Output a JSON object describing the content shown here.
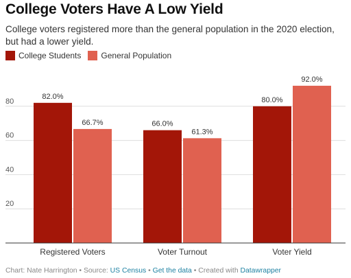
{
  "header": {
    "title": "College Voters Have A Low Yield",
    "subtitle": "College voters registered more than the general population in the 2020 election, but had a lower yield."
  },
  "colors": {
    "college": "#a31608",
    "general": "#e06150",
    "grid": "#dddddd",
    "axis": "#333333"
  },
  "chart_data": {
    "type": "bar",
    "categories": [
      "Registered Voters",
      "Voter Turnout",
      "Voter Yield"
    ],
    "series": [
      {
        "name": "College Students",
        "values": [
          82.0,
          66.0,
          80.0
        ],
        "labels": [
          "82.0%",
          "66.0%",
          "80.0%"
        ]
      },
      {
        "name": "General Population",
        "values": [
          66.7,
          61.3,
          92.0
        ],
        "labels": [
          "66.7%",
          "61.3%",
          "92.0%"
        ]
      }
    ],
    "title": "College Voters Have A Low Yield",
    "ylim": [
      0,
      100
    ],
    "yticks": [
      20,
      40,
      60,
      80
    ],
    "grid": true,
    "legend": "top-left"
  },
  "footer": {
    "chart_credit": "Chart: Nate Harrington",
    "source_label": "Source:",
    "source_link": "US Census",
    "get_data": "Get the data",
    "created_with": "Created with",
    "tool": "Datawrapper",
    "sep": "•"
  }
}
